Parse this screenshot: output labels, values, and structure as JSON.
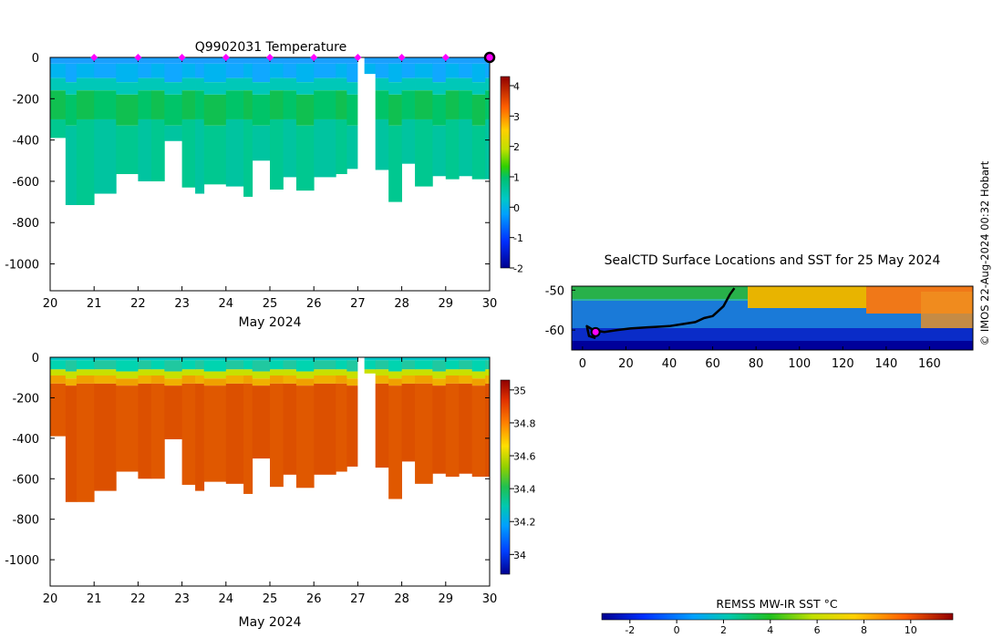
{
  "chart_data": [
    {
      "type": "heatmap",
      "panel": "temperature-section",
      "title": "Q9902031  Temperature",
      "xlabel": "May 2024",
      "ylabel": "",
      "xlim": [
        20,
        30
      ],
      "ylim": [
        -1130,
        0
      ],
      "x_ticks": [
        "20",
        "21",
        "22",
        "23",
        "24",
        "25",
        "26",
        "27",
        "28",
        "29",
        "30"
      ],
      "y_ticks": [
        "0",
        "-200",
        "-400",
        "-600",
        "-800",
        "-1000"
      ],
      "y_tick_values": [
        0,
        -200,
        -400,
        -600,
        -800,
        -1000
      ],
      "colorbar": {
        "min": -2,
        "max": 4.3,
        "ticks": [
          "-2",
          "-1",
          "0",
          "1",
          "2",
          "3",
          "4"
        ],
        "tick_values": [
          -2,
          -1,
          0,
          1,
          2,
          3,
          4
        ]
      },
      "profile_days": [
        20.0,
        20.35,
        20.6,
        21.0,
        21.5,
        22.0,
        22.3,
        22.6,
        23.0,
        23.3,
        23.5,
        24.0,
        24.4,
        24.6,
        25.0,
        25.3,
        25.6,
        26.0,
        26.5,
        26.75,
        27.1,
        27.4,
        27.7,
        28.0,
        28.3,
        28.7,
        29.0,
        29.3,
        29.6,
        29.9
      ],
      "profile_max_depth": [
        -390,
        -715,
        -715,
        -660,
        -565,
        -600,
        -600,
        -405,
        -630,
        -660,
        -615,
        -625,
        -675,
        -500,
        -640,
        -580,
        -645,
        -580,
        -565,
        -540,
        -80,
        -545,
        -700,
        -515,
        -625,
        -575,
        -590,
        -575,
        -590,
        -590
      ],
      "gap_days": [
        27.0,
        27.15
      ],
      "surface_markers_days": [
        21,
        22,
        23,
        24,
        25,
        26,
        27,
        28,
        29
      ],
      "end_marker_day": 30
    },
    {
      "type": "heatmap",
      "panel": "salinity-section",
      "title": "",
      "xlabel": "May 2024",
      "xlim": [
        20,
        30
      ],
      "ylim": [
        -1130,
        0
      ],
      "x_ticks": [
        "20",
        "21",
        "22",
        "23",
        "24",
        "25",
        "26",
        "27",
        "28",
        "29",
        "30"
      ],
      "y_ticks": [
        "0",
        "-200",
        "-400",
        "-600",
        "-800",
        "-1000"
      ],
      "y_tick_values": [
        0,
        -200,
        -400,
        -600,
        -800,
        -1000
      ],
      "colorbar": {
        "min": 33.88,
        "max": 35.06,
        "ticks": [
          "34",
          "34.2",
          "34.4",
          "34.6",
          "34.8",
          "35"
        ],
        "tick_values": [
          34,
          34.2,
          34.4,
          34.6,
          34.8,
          35
        ]
      }
    },
    {
      "type": "map",
      "panel": "sst-map",
      "title": "SealCTD Surface Locations and SST for 25 May 2024",
      "xlim": [
        -5,
        180
      ],
      "ylim": [
        -65,
        -49
      ],
      "x_ticks": [
        "0",
        "20",
        "40",
        "60",
        "80",
        "100",
        "120",
        "140",
        "160"
      ],
      "x_tick_values": [
        0,
        20,
        40,
        60,
        80,
        100,
        120,
        140,
        160
      ],
      "y_ticks": [
        "-50",
        "-60"
      ],
      "y_tick_values": [
        -50,
        -60
      ],
      "track_lon": [
        70,
        68,
        65,
        62,
        60,
        56,
        52,
        46,
        40,
        34,
        30,
        22,
        16,
        10,
        5,
        2,
        3,
        6
      ],
      "track_lat": [
        -49.5,
        -51,
        -54,
        -55.5,
        -56.5,
        -57,
        -58,
        -58.5,
        -59,
        -59.2,
        -59.3,
        -59.6,
        -60,
        -60.5,
        -60,
        -59,
        -61.5,
        -62
      ],
      "current_position": {
        "lon": 6,
        "lat": -60.5
      },
      "colorbar_label": "REMSS MW-IR SST °C",
      "colorbar": {
        "min": -3.2,
        "max": 11.8,
        "ticks": [
          "-2",
          "0",
          "2",
          "4",
          "6",
          "8",
          "10"
        ],
        "tick_values": [
          -2,
          0,
          2,
          4,
          6,
          8,
          10
        ]
      }
    }
  ],
  "footer": {
    "credit": "© IMOS 22-Aug-2024 00:32 Hobart"
  },
  "colors": {
    "marker": "#ff00ff",
    "track": "#000000"
  }
}
